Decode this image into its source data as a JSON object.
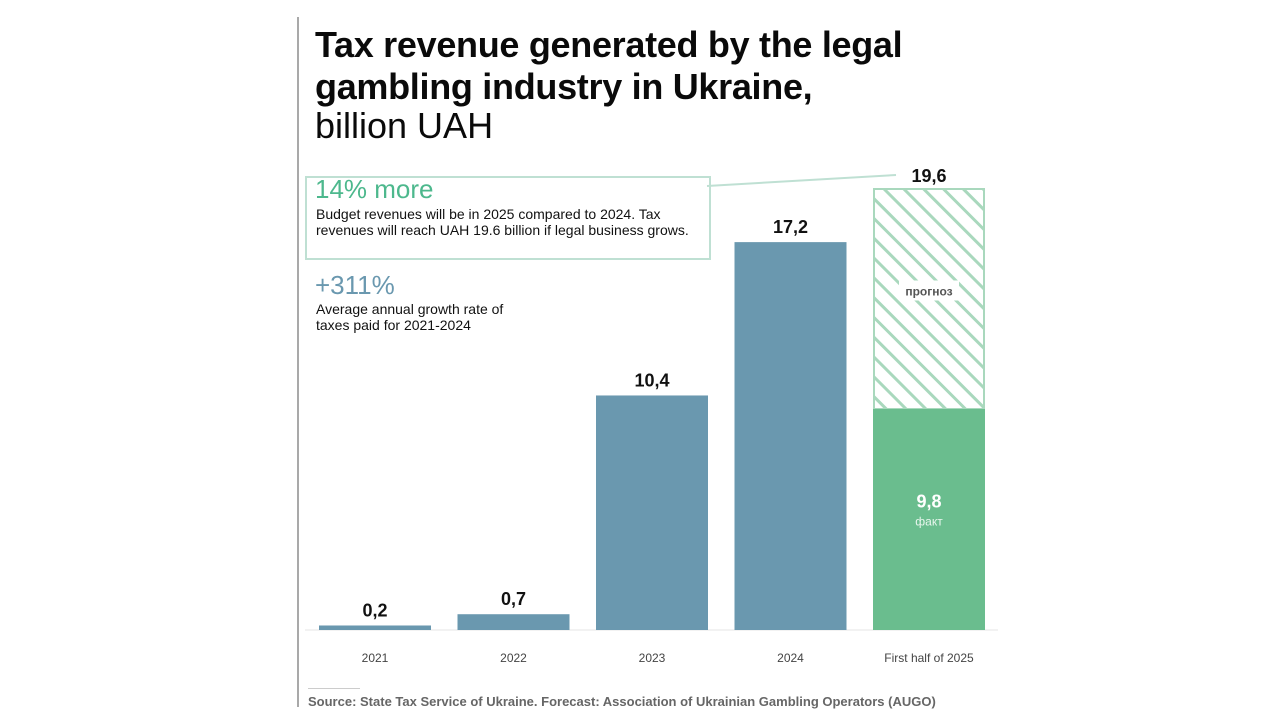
{
  "title": "Tax revenue generated by the legal gambling industry in Ukraine,",
  "subtitle": "billion UAH",
  "annotations": {
    "first": {
      "headline": "14% more",
      "text": "Budget revenues will be in 2025 compared to 2024. Tax revenues will reach UAH 19.6 billion if legal business grows."
    },
    "second": {
      "headline": "+311%",
      "text": "Average annual growth rate of taxes paid for 2021-2024"
    }
  },
  "source": "Source: State Tax Service of Ukraine. Forecast: Association of Ukrainian Gambling Operators (AUGO)",
  "colors": {
    "bar": "#6a98af",
    "fact": "#6abd8e",
    "forecast_border": "#a9d8bd",
    "accent_green": "#4db88d"
  },
  "chart_data": {
    "type": "bar",
    "title": "Tax revenue generated by the legal gambling industry in Ukraine, billion UAH",
    "xlabel": "",
    "ylabel": "billion UAH",
    "ylim": [
      0,
      19.6
    ],
    "categories": [
      "2021",
      "2022",
      "2023",
      "2024",
      "First half of 2025"
    ],
    "values": [
      0.2,
      0.7,
      10.4,
      17.2,
      9.8
    ],
    "labels": [
      "0,2",
      "0,7",
      "10,4",
      "17,2",
      "9,8"
    ],
    "forecast": {
      "category": "First half of 2025",
      "total": 19.6,
      "total_label": "19,6",
      "fact_value": 9.8,
      "fact_word": "факт",
      "forecast_word": "прогноз"
    }
  }
}
